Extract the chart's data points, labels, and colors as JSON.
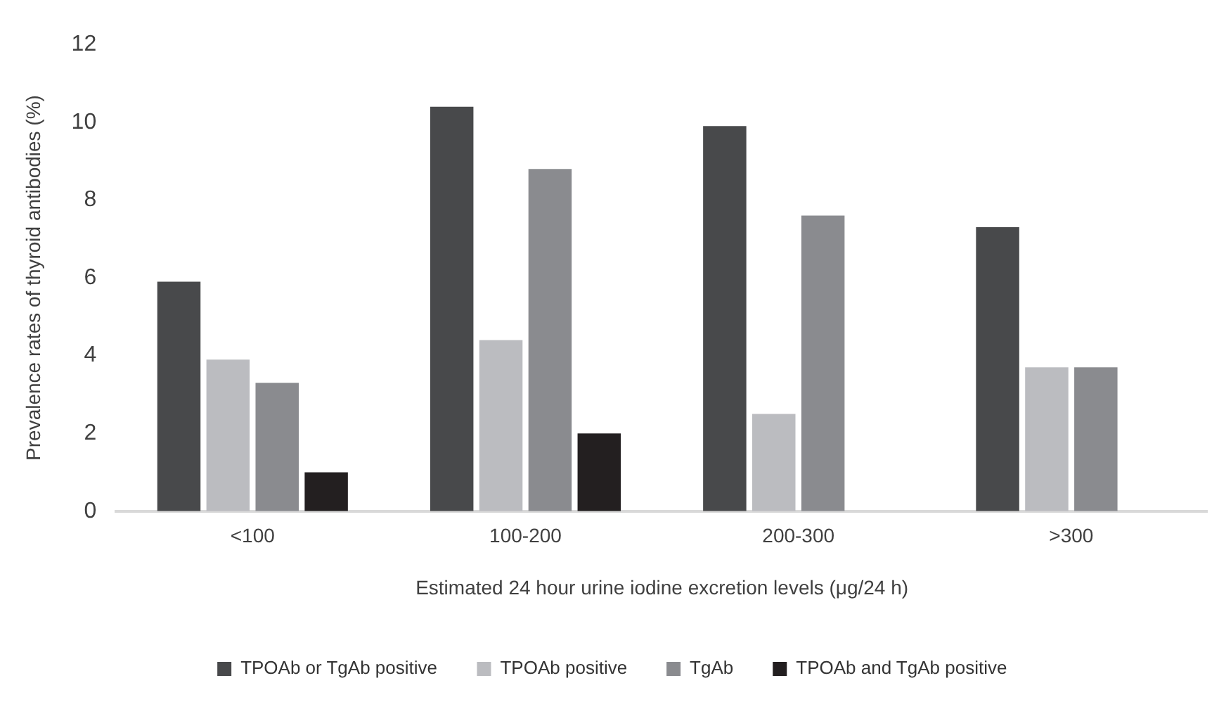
{
  "chart_data": {
    "type": "bar",
    "xlabel": "Estimated 24 hour urine iodine excretion levels (μg/24 h)",
    "ylabel": "Prevalence rates of thyroid antibodies (%)",
    "categories": [
      "<100",
      "100-200",
      "200-300",
      ">300"
    ],
    "series": [
      {
        "name": "TPOAb or TgAb positive",
        "color": "#48494b",
        "values": [
          5.9,
          10.4,
          9.9,
          7.3
        ]
      },
      {
        "name": "TPOAb positive",
        "color": "#bbbcc0",
        "values": [
          3.9,
          4.4,
          2.5,
          3.7
        ]
      },
      {
        "name": "TgAb",
        "color": "#8a8b8f",
        "values": [
          3.3,
          8.8,
          7.6,
          3.7
        ]
      },
      {
        "name": "TPOAb and TgAb positive",
        "color": "#231f20",
        "values": [
          1.0,
          2.0,
          null,
          null
        ]
      }
    ],
    "ylim": [
      0,
      12
    ],
    "yticks": [
      0,
      2,
      4,
      6,
      8,
      10,
      12
    ],
    "grid": false,
    "legend": "bottom"
  }
}
